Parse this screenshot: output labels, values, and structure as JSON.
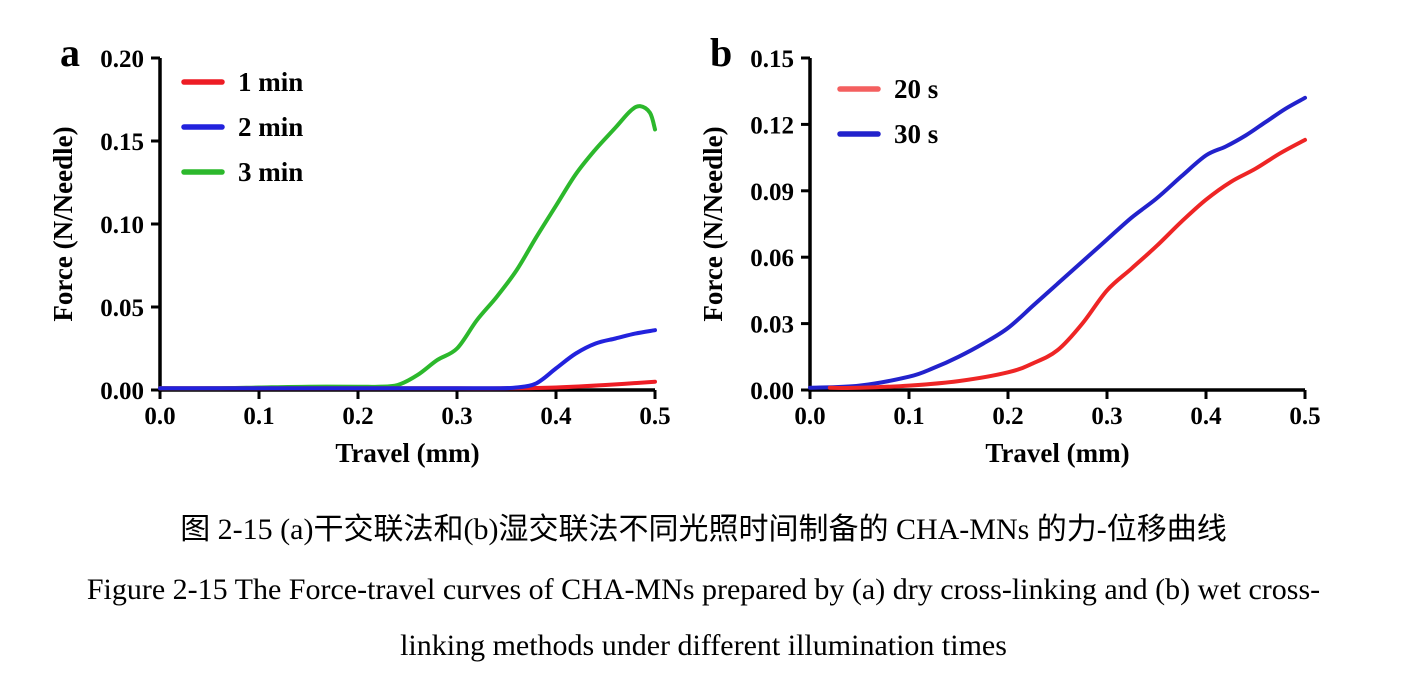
{
  "figure": {
    "caption_zh": "图 2-15 (a)干交联法和(b)湿交联法不同光照时间制备的 CHA-MNs 的力-位移曲线",
    "caption_en_line1": "Figure 2-15 The Force-travel curves of CHA-MNs prepared by (a) dry cross-linking and (b) wet cross-",
    "caption_en_line2": "linking methods under different illumination times"
  },
  "chart_data": [
    {
      "type": "line",
      "panel_label": "a",
      "xlabel": "Travel (mm)",
      "ylabel": "Force (N/Needle)",
      "xlim": [
        0.0,
        0.5
      ],
      "ylim": [
        0.0,
        0.2
      ],
      "xticks": [
        0.0,
        0.1,
        0.2,
        0.3,
        0.4,
        0.5
      ],
      "xtick_labels": [
        "0.0",
        "0.1",
        "0.2",
        "0.3",
        "0.4",
        "0.5"
      ],
      "yticks": [
        0.0,
        0.05,
        0.1,
        0.15,
        0.2
      ],
      "ytick_labels": [
        "0.00",
        "0.05",
        "0.10",
        "0.15",
        "0.20"
      ],
      "grid": false,
      "legend_position": "upper-left-inside",
      "axis_color": "#000000",
      "draw_order": [
        2,
        0,
        1
      ],
      "series": [
        {
          "name": "1 min",
          "color": "#ed1c24",
          "points": [
            [
              0,
              0.001
            ],
            [
              0.05,
              0.001
            ],
            [
              0.1,
              0.001
            ],
            [
              0.15,
              0.001
            ],
            [
              0.2,
              0.001
            ],
            [
              0.25,
              0.001
            ],
            [
              0.3,
              0.001
            ],
            [
              0.35,
              0.001
            ],
            [
              0.4,
              0.0015
            ],
            [
              0.45,
              0.003
            ],
            [
              0.5,
              0.005
            ]
          ]
        },
        {
          "name": "2 min",
          "color": "#2222dd",
          "points": [
            [
              0,
              0.001
            ],
            [
              0.05,
              0.001
            ],
            [
              0.1,
              0.001
            ],
            [
              0.15,
              0.001
            ],
            [
              0.2,
              0.001
            ],
            [
              0.25,
              0.001
            ],
            [
              0.3,
              0.001
            ],
            [
              0.34,
              0.001
            ],
            [
              0.36,
              0.0015
            ],
            [
              0.38,
              0.004
            ],
            [
              0.4,
              0.013
            ],
            [
              0.42,
              0.022
            ],
            [
              0.44,
              0.028
            ],
            [
              0.46,
              0.031
            ],
            [
              0.48,
              0.034
            ],
            [
              0.5,
              0.036
            ]
          ]
        },
        {
          "name": "3 min",
          "color": "#2cb82c",
          "points": [
            [
              0,
              0.001
            ],
            [
              0.05,
              0.001
            ],
            [
              0.1,
              0.0015
            ],
            [
              0.15,
              0.002
            ],
            [
              0.2,
              0.002
            ],
            [
              0.22,
              0.002
            ],
            [
              0.24,
              0.003
            ],
            [
              0.26,
              0.009
            ],
            [
              0.28,
              0.018
            ],
            [
              0.3,
              0.025
            ],
            [
              0.32,
              0.042
            ],
            [
              0.34,
              0.056
            ],
            [
              0.36,
              0.072
            ],
            [
              0.38,
              0.092
            ],
            [
              0.4,
              0.111
            ],
            [
              0.42,
              0.13
            ],
            [
              0.44,
              0.145
            ],
            [
              0.46,
              0.158
            ],
            [
              0.475,
              0.168
            ],
            [
              0.485,
              0.171
            ],
            [
              0.495,
              0.167
            ],
            [
              0.5,
              0.157
            ]
          ]
        }
      ]
    },
    {
      "type": "line",
      "panel_label": "b",
      "xlabel": "Travel (mm)",
      "ylabel": "Force (N/Needle)",
      "xlim": [
        0.0,
        0.5
      ],
      "ylim": [
        0.0,
        0.15
      ],
      "xticks": [
        0.0,
        0.1,
        0.2,
        0.3,
        0.4,
        0.5
      ],
      "xtick_labels": [
        "0.0",
        "0.1",
        "0.2",
        "0.3",
        "0.4",
        "0.5"
      ],
      "yticks": [
        0.0,
        0.03,
        0.06,
        0.09,
        0.12,
        0.15
      ],
      "ytick_labels": [
        "0.00",
        "0.03",
        "0.06",
        "0.09",
        "0.12",
        "0.15"
      ],
      "grid": false,
      "legend_position": "upper-left-inside",
      "axis_color": "#000000",
      "draw_order": [
        1,
        0
      ],
      "series": [
        {
          "name": "20 s",
          "color": "#ee2525",
          "legend_color": "#f45f5f",
          "points": [
            [
              0.02,
              0.001
            ],
            [
              0.05,
              0.001
            ],
            [
              0.1,
              0.002
            ],
            [
              0.15,
              0.004
            ],
            [
              0.2,
              0.008
            ],
            [
              0.225,
              0.012
            ],
            [
              0.25,
              0.018
            ],
            [
              0.275,
              0.03
            ],
            [
              0.3,
              0.045
            ],
            [
              0.325,
              0.055
            ],
            [
              0.35,
              0.065
            ],
            [
              0.375,
              0.076
            ],
            [
              0.4,
              0.086
            ],
            [
              0.425,
              0.094
            ],
            [
              0.45,
              0.1
            ],
            [
              0.475,
              0.107
            ],
            [
              0.5,
              0.113
            ]
          ]
        },
        {
          "name": "30 s",
          "color": "#2222cc",
          "points": [
            [
              0,
              0.001
            ],
            [
              0.05,
              0.002
            ],
            [
              0.1,
              0.006
            ],
            [
              0.125,
              0.01
            ],
            [
              0.15,
              0.015
            ],
            [
              0.175,
              0.021
            ],
            [
              0.2,
              0.028
            ],
            [
              0.225,
              0.038
            ],
            [
              0.25,
              0.048
            ],
            [
              0.275,
              0.058
            ],
            [
              0.3,
              0.068
            ],
            [
              0.325,
              0.078
            ],
            [
              0.35,
              0.0865
            ],
            [
              0.375,
              0.0965
            ],
            [
              0.4,
              0.106
            ],
            [
              0.42,
              0.11
            ],
            [
              0.44,
              0.115
            ],
            [
              0.46,
              0.121
            ],
            [
              0.48,
              0.127
            ],
            [
              0.5,
              0.132
            ]
          ]
        }
      ]
    }
  ]
}
